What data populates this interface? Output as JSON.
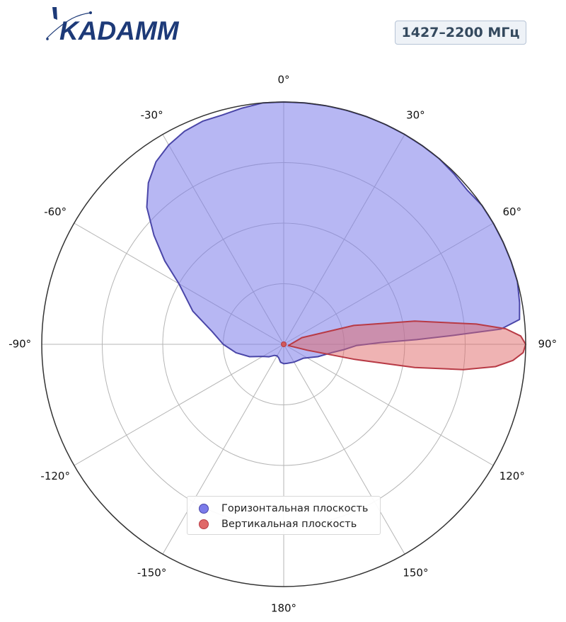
{
  "brand": {
    "logo_text": "KADAMM",
    "color": "#1d3a78"
  },
  "badge": {
    "text": "1427–2200 МГц"
  },
  "chart_data": {
    "type": "polar",
    "angle_unit": "degrees",
    "zero_direction": "top",
    "angle_tick_labels": [
      "0°",
      "30°",
      "60°",
      "90°",
      "120°",
      "150°",
      "180°",
      "-150°",
      "-120°",
      "-90°",
      "-60°",
      "-30°"
    ],
    "angle_ticks": [
      0,
      30,
      60,
      90,
      120,
      150,
      180,
      -150,
      -120,
      -90,
      -60,
      -30
    ],
    "radial_gridlines": [
      0.25,
      0.5,
      0.75,
      1.0
    ],
    "radial_range": [
      0,
      1
    ],
    "grid": true,
    "legend_position": "bottom-center",
    "series": [
      {
        "name": "Горизонтальная плоскость",
        "color": "#7b7bea",
        "edge_color": "#4a46a8",
        "points": [
          [
            0,
            1.0
          ],
          [
            5,
            1.0
          ],
          [
            10,
            1.0
          ],
          [
            15,
            1.0
          ],
          [
            20,
            1.0
          ],
          [
            25,
            1.0
          ],
          [
            30,
            1.0
          ],
          [
            35,
            1.0
          ],
          [
            40,
            1.0
          ],
          [
            45,
            0.995
          ],
          [
            50,
            0.99
          ],
          [
            55,
            1.0
          ],
          [
            60,
            1.0
          ],
          [
            65,
            1.0
          ],
          [
            70,
            1.0
          ],
          [
            75,
            1.0
          ],
          [
            80,
            0.99
          ],
          [
            84,
            0.98
          ],
          [
            86,
            0.9
          ],
          [
            87,
            0.7
          ],
          [
            88,
            0.55
          ],
          [
            89,
            0.4
          ],
          [
            91,
            0.3
          ],
          [
            95,
            0.25
          ],
          [
            100,
            0.2
          ],
          [
            110,
            0.15
          ],
          [
            125,
            0.1
          ],
          [
            150,
            0.085
          ],
          [
            170,
            0.08
          ],
          [
            180,
            0.08
          ],
          [
            -170,
            0.075
          ],
          [
            -160,
            0.06
          ],
          [
            -150,
            0.055
          ],
          [
            -140,
            0.06
          ],
          [
            -130,
            0.08
          ],
          [
            -120,
            0.1
          ],
          [
            -110,
            0.15
          ],
          [
            -100,
            0.2
          ],
          [
            -90,
            0.25
          ],
          [
            -80,
            0.3
          ],
          [
            -70,
            0.4
          ],
          [
            -60,
            0.5
          ],
          [
            -55,
            0.6
          ],
          [
            -50,
            0.7
          ],
          [
            -45,
            0.8
          ],
          [
            -40,
            0.87
          ],
          [
            -35,
            0.92
          ],
          [
            -30,
            0.95
          ],
          [
            -25,
            0.97
          ],
          [
            -20,
            0.98
          ],
          [
            -15,
            0.98
          ],
          [
            -10,
            0.99
          ],
          [
            -5,
            1.0
          ]
        ]
      },
      {
        "name": "Вертикальная плоскость",
        "color": "#e06868",
        "edge_color": "#b83a45",
        "points": [
          [
            70,
            0.08
          ],
          [
            75,
            0.3
          ],
          [
            80,
            0.55
          ],
          [
            84,
            0.8
          ],
          [
            86,
            0.92
          ],
          [
            88,
            0.98
          ],
          [
            90,
            1.0
          ],
          [
            92,
            0.99
          ],
          [
            94,
            0.95
          ],
          [
            96,
            0.88
          ],
          [
            98,
            0.75
          ],
          [
            100,
            0.55
          ],
          [
            102,
            0.3
          ],
          [
            104,
            0.1
          ],
          [
            105,
            0.02
          ]
        ]
      }
    ]
  }
}
